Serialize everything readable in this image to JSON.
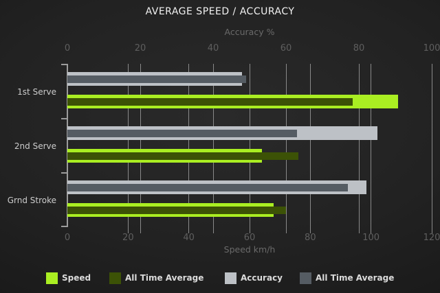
{
  "title": "AVERAGE SPEED / ACCURACY",
  "chart_data": {
    "type": "bar",
    "orientation": "horizontal",
    "grid": true,
    "categories": [
      "1st Serve",
      "2nd Serve",
      "Grnd Stroke"
    ],
    "axes": {
      "top": {
        "label": "Accuracy %",
        "min": 0,
        "max": 100,
        "ticks": [
          0,
          20,
          40,
          60,
          80,
          100
        ]
      },
      "bottom": {
        "label": "Speed km/h",
        "min": 0,
        "max": 120,
        "ticks": [
          0,
          20,
          40,
          60,
          80,
          100,
          120
        ]
      }
    },
    "series": [
      {
        "name": "Speed",
        "axis": "bottom",
        "color": "#aaee22",
        "role": "outer",
        "values": [
          109,
          64,
          68
        ]
      },
      {
        "name": "All Time Average",
        "axis": "bottom",
        "color": "#3c5206",
        "role": "inner",
        "values": [
          94,
          76,
          72
        ]
      },
      {
        "name": "Accuracy",
        "axis": "top",
        "color": "#bdc1c6",
        "role": "outer",
        "values": [
          48,
          85,
          82
        ]
      },
      {
        "name": "All Time Average",
        "axis": "top",
        "color": "#555c63",
        "role": "inner",
        "values": [
          49,
          63,
          77
        ]
      }
    ],
    "legend_position": "bottom"
  }
}
